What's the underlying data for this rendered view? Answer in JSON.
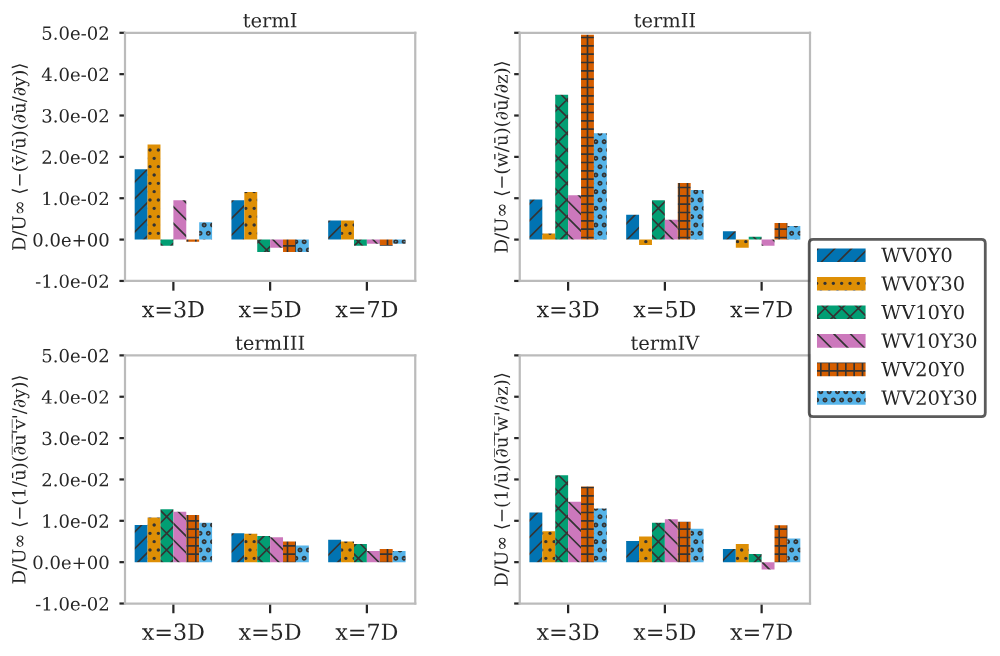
{
  "chart_data": [
    {
      "type": "bar",
      "title": "termI",
      "ylabel": "D/U∞ ⟨−(v̄/ū)(∂ū/∂y)⟩",
      "categories": [
        "x=3D",
        "x=5D",
        "x=7D"
      ],
      "ylim": [
        -0.01,
        0.05
      ],
      "yticks": [
        {
          "value": -0.01,
          "label": "-1.0e-02"
        },
        {
          "value": 0.0,
          "label": "0.0e+00"
        },
        {
          "value": 0.01,
          "label": "1.0e-02"
        },
        {
          "value": 0.02,
          "label": "2.0e-02"
        },
        {
          "value": 0.03,
          "label": "3.0e-02"
        },
        {
          "value": 0.04,
          "label": "4.0e-02"
        },
        {
          "value": 0.05,
          "label": "5.0e-02"
        }
      ],
      "grid": false,
      "legend": "right",
      "series": [
        {
          "name": "WV0Y0",
          "color": "#0173b2",
          "values": [
            0.017,
            0.0095,
            0.0046
          ]
        },
        {
          "name": "WV0Y30",
          "color": "#de8f05",
          "values": [
            0.023,
            0.0115,
            0.0046
          ]
        },
        {
          "name": "WV10Y0",
          "color": "#029e73",
          "values": [
            -0.0015,
            -0.003,
            -0.0015
          ]
        },
        {
          "name": "WV10Y30",
          "color": "#cc78bc",
          "values": [
            0.0095,
            -0.002,
            -0.001
          ]
        },
        {
          "name": "WV20Y0",
          "color": "#d55e00",
          "values": [
            -0.0005,
            -0.003,
            -0.0015
          ]
        },
        {
          "name": "WV20Y30",
          "color": "#56b4e9",
          "values": [
            0.0042,
            -0.003,
            -0.001
          ]
        }
      ]
    },
    {
      "type": "bar",
      "title": "termII",
      "ylabel": "D/U∞ ⟨−(w̄/ū)(∂ū/∂z)⟩",
      "categories": [
        "x=3D",
        "x=5D",
        "x=7D"
      ],
      "ylim": [
        -0.01,
        0.05
      ],
      "yticks": [
        {
          "value": -0.01,
          "label": null
        },
        {
          "value": 0.0,
          "label": null
        },
        {
          "value": 0.01,
          "label": null
        },
        {
          "value": 0.02,
          "label": null
        },
        {
          "value": 0.03,
          "label": null
        },
        {
          "value": 0.04,
          "label": null
        },
        {
          "value": 0.05,
          "label": null
        }
      ],
      "tick_labels": "x",
      "grid": false,
      "legend": "right",
      "series": [
        {
          "name": "WV0Y0",
          "color": "#0173b2",
          "values": [
            0.0097,
            0.006,
            0.002
          ]
        },
        {
          "name": "WV0Y30",
          "color": "#de8f05",
          "values": [
            0.0015,
            -0.0013,
            -0.002
          ]
        },
        {
          "name": "WV10Y0",
          "color": "#029e73",
          "values": [
            0.035,
            0.0095,
            0.0007
          ]
        },
        {
          "name": "WV10Y30",
          "color": "#cc78bc",
          "values": [
            0.0107,
            0.0048,
            -0.0015
          ]
        },
        {
          "name": "WV20Y0",
          "color": "#d55e00",
          "values": [
            0.0495,
            0.0137,
            0.004
          ]
        },
        {
          "name": "WV20Y30",
          "color": "#56b4e9",
          "values": [
            0.0257,
            0.012,
            0.0033
          ]
        }
      ]
    },
    {
      "type": "bar",
      "title": "termIII",
      "ylabel": "D/U∞ ⟨−(1/ū)(∂̅u̅'̅v̅'/∂y)⟩",
      "categories": [
        "x=3D",
        "x=5D",
        "x=7D"
      ],
      "ylim": [
        -0.01,
        0.05
      ],
      "yticks": [
        {
          "value": -0.01,
          "label": "-1.0e-02"
        },
        {
          "value": 0.0,
          "label": "0.0e+00"
        },
        {
          "value": 0.01,
          "label": "1.0e-02"
        },
        {
          "value": 0.02,
          "label": "2.0e-02"
        },
        {
          "value": 0.03,
          "label": "3.0e-02"
        },
        {
          "value": 0.04,
          "label": "4.0e-02"
        },
        {
          "value": 0.05,
          "label": "5.0e-02"
        }
      ],
      "grid": false,
      "legend": "right",
      "series": [
        {
          "name": "WV0Y0",
          "color": "#0173b2",
          "values": [
            0.009,
            0.007,
            0.0054
          ]
        },
        {
          "name": "WV0Y30",
          "color": "#de8f05",
          "values": [
            0.0108,
            0.0069,
            0.005
          ]
        },
        {
          "name": "WV10Y0",
          "color": "#029e73",
          "values": [
            0.0128,
            0.0063,
            0.0044
          ]
        },
        {
          "name": "WV10Y30",
          "color": "#cc78bc",
          "values": [
            0.0122,
            0.006,
            0.0027
          ]
        },
        {
          "name": "WV20Y0",
          "color": "#d55e00",
          "values": [
            0.0114,
            0.005,
            0.0032
          ]
        },
        {
          "name": "WV20Y30",
          "color": "#56b4e9",
          "values": [
            0.0095,
            0.004,
            0.0027
          ]
        }
      ]
    },
    {
      "type": "bar",
      "title": "termIV",
      "ylabel": "D/U∞ ⟨−(1/ū)(∂̅u̅'̅w̅'/∂z)⟩",
      "categories": [
        "x=3D",
        "x=5D",
        "x=7D"
      ],
      "ylim": [
        -0.01,
        0.05
      ],
      "yticks": [
        {
          "value": -0.01,
          "label": null
        },
        {
          "value": 0.0,
          "label": null
        },
        {
          "value": 0.01,
          "label": null
        },
        {
          "value": 0.02,
          "label": null
        },
        {
          "value": 0.03,
          "label": null
        },
        {
          "value": 0.04,
          "label": null
        },
        {
          "value": 0.05,
          "label": null
        }
      ],
      "tick_labels": "x",
      "grid": false,
      "legend": "right",
      "series": [
        {
          "name": "WV0Y0",
          "color": "#0173b2",
          "values": [
            0.012,
            0.0051,
            0.0032
          ]
        },
        {
          "name": "WV0Y30",
          "color": "#de8f05",
          "values": [
            0.0075,
            0.0062,
            0.0044
          ]
        },
        {
          "name": "WV10Y0",
          "color": "#029e73",
          "values": [
            0.021,
            0.0095,
            0.002
          ]
        },
        {
          "name": "WV10Y30",
          "color": "#cc78bc",
          "values": [
            0.0146,
            0.0104,
            -0.0018
          ]
        },
        {
          "name": "WV20Y0",
          "color": "#d55e00",
          "values": [
            0.0183,
            0.0098,
            0.0089
          ]
        },
        {
          "name": "WV20Y30",
          "color": "#56b4e9",
          "values": [
            0.013,
            0.0081,
            0.0057
          ]
        }
      ]
    }
  ]
}
